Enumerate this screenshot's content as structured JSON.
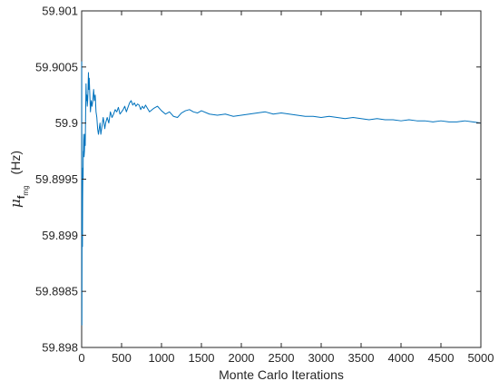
{
  "chart_data": {
    "type": "line",
    "xlabel": "Monte Carlo Iterations",
    "ylabel": {
      "symbol": "μ",
      "sub": "f",
      "subsub": "mg",
      "unit": "(Hz)"
    },
    "xlim": [
      0,
      5000
    ],
    "ylim": [
      59.898,
      59.901
    ],
    "xticks": [
      0,
      500,
      1000,
      1500,
      2000,
      2500,
      3000,
      3500,
      4000,
      4500,
      5000
    ],
    "xtick_labels": [
      "0",
      "500",
      "1000",
      "1500",
      "2000",
      "2500",
      "3000",
      "3500",
      "4000",
      "4500",
      "5000"
    ],
    "yticks": [
      59.898,
      59.8985,
      59.899,
      59.8995,
      59.9,
      59.9005,
      59.901
    ],
    "ytick_labels": [
      "59.898",
      "59.8985",
      "59.899",
      "59.8995",
      "59.9",
      "59.9005",
      "59.901"
    ],
    "grid": false,
    "series": [
      {
        "color": "#0072BD",
        "x": [
          1,
          3,
          5,
          8,
          10,
          12,
          15,
          18,
          20,
          22,
          25,
          28,
          30,
          35,
          40,
          45,
          50,
          55,
          60,
          65,
          70,
          75,
          80,
          85,
          90,
          95,
          100,
          110,
          120,
          130,
          140,
          150,
          160,
          170,
          180,
          190,
          200,
          210,
          220,
          230,
          240,
          250,
          260,
          270,
          280,
          290,
          300,
          320,
          340,
          360,
          380,
          400,
          420,
          440,
          460,
          480,
          500,
          520,
          540,
          560,
          580,
          600,
          620,
          640,
          660,
          680,
          700,
          720,
          740,
          760,
          780,
          800,
          850,
          900,
          950,
          1000,
          1050,
          1100,
          1150,
          1200,
          1250,
          1300,
          1350,
          1400,
          1450,
          1500,
          1600,
          1700,
          1800,
          1900,
          2000,
          2100,
          2200,
          2300,
          2400,
          2500,
          2600,
          2700,
          2800,
          2900,
          3000,
          3100,
          3200,
          3300,
          3400,
          3500,
          3600,
          3700,
          3800,
          3900,
          4000,
          4100,
          4200,
          4300,
          4400,
          4500,
          4600,
          4700,
          4800,
          4900,
          5000
        ],
        "y": [
          59.90055,
          59.8982,
          59.8991,
          59.8995,
          59.8989,
          59.8993,
          59.8996,
          59.8995,
          59.89975,
          59.8997,
          59.8999,
          59.8998,
          59.8997,
          59.89975,
          59.8999,
          59.8998,
          59.9001,
          59.90035,
          59.9002,
          59.90025,
          59.90015,
          59.9002,
          59.9003,
          59.90045,
          59.9003,
          59.9004,
          59.9003,
          59.9001,
          59.9002,
          59.90015,
          59.9002,
          59.9003,
          59.9002,
          59.90025,
          59.9001,
          59.90005,
          59.89995,
          59.8999,
          59.89995,
          59.9,
          59.8999,
          59.89995,
          59.9,
          59.90005,
          59.9,
          59.89995,
          59.9,
          59.90005,
          59.9,
          59.9001,
          59.90005,
          59.90008,
          59.90012,
          59.9001,
          59.90014,
          59.90008,
          59.9001,
          59.90012,
          59.90015,
          59.9001,
          59.90014,
          59.90018,
          59.9002,
          59.90016,
          59.90018,
          59.90015,
          59.90017,
          59.90016,
          59.90012,
          59.90015,
          59.90013,
          59.90016,
          59.9001,
          59.90013,
          59.90015,
          59.90011,
          59.90008,
          59.9001,
          59.90006,
          59.90005,
          59.90009,
          59.90011,
          59.90012,
          59.9001,
          59.90009,
          59.90011,
          59.90008,
          59.90007,
          59.90008,
          59.90006,
          59.90007,
          59.90008,
          59.90009,
          59.9001,
          59.90008,
          59.90009,
          59.90008,
          59.90007,
          59.90006,
          59.90006,
          59.90005,
          59.90006,
          59.90005,
          59.90004,
          59.90005,
          59.90004,
          59.90003,
          59.90004,
          59.90003,
          59.90003,
          59.90002,
          59.90003,
          59.90002,
          59.90002,
          59.90001,
          59.90002,
          59.90001,
          59.90001,
          59.90002,
          59.90001,
          59.9
        ]
      }
    ]
  }
}
